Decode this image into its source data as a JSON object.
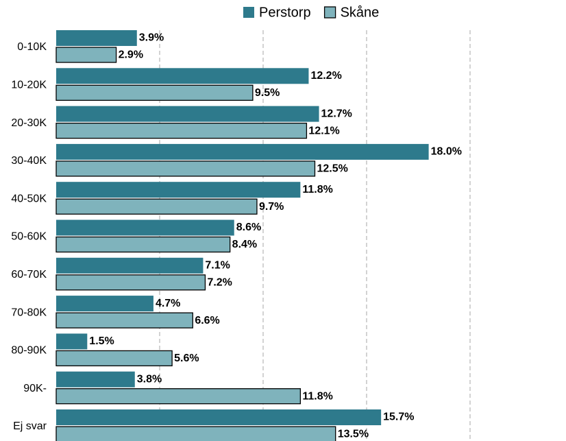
{
  "chart_data": {
    "type": "bar",
    "orientation": "horizontal",
    "categories": [
      "0-10K",
      "10-20K",
      "20-30K",
      "30-40K",
      "40-50K",
      "50-60K",
      "60-70K",
      "70-80K",
      "80-90K",
      "90K-",
      "Ej svar"
    ],
    "series": [
      {
        "name": "Perstorp",
        "color": "#2e7a8c",
        "values": [
          3.9,
          12.2,
          12.7,
          18.0,
          11.8,
          8.6,
          7.1,
          4.7,
          1.5,
          3.8,
          15.7
        ],
        "value_labels": [
          "3.9%",
          "12.2%",
          "12.7%",
          "18.0%",
          "11.8%",
          "8.6%",
          "7.1%",
          "4.7%",
          "1.5%",
          "3.8%",
          "15.7%"
        ]
      },
      {
        "name": "Skåne",
        "color": "#7fb3bc",
        "values": [
          2.9,
          9.5,
          12.1,
          12.5,
          9.7,
          8.4,
          7.2,
          6.6,
          5.6,
          11.8,
          13.5
        ],
        "value_labels": [
          "2.9%",
          "9.5%",
          "12.1%",
          "12.5%",
          "9.7%",
          "8.4%",
          "7.2%",
          "6.6%",
          "5.6%",
          "11.8%",
          "13.5%"
        ]
      }
    ],
    "xlim": [
      0,
      20
    ],
    "xticks": [
      5,
      10,
      15,
      20
    ],
    "grid": true,
    "legend": "top"
  }
}
